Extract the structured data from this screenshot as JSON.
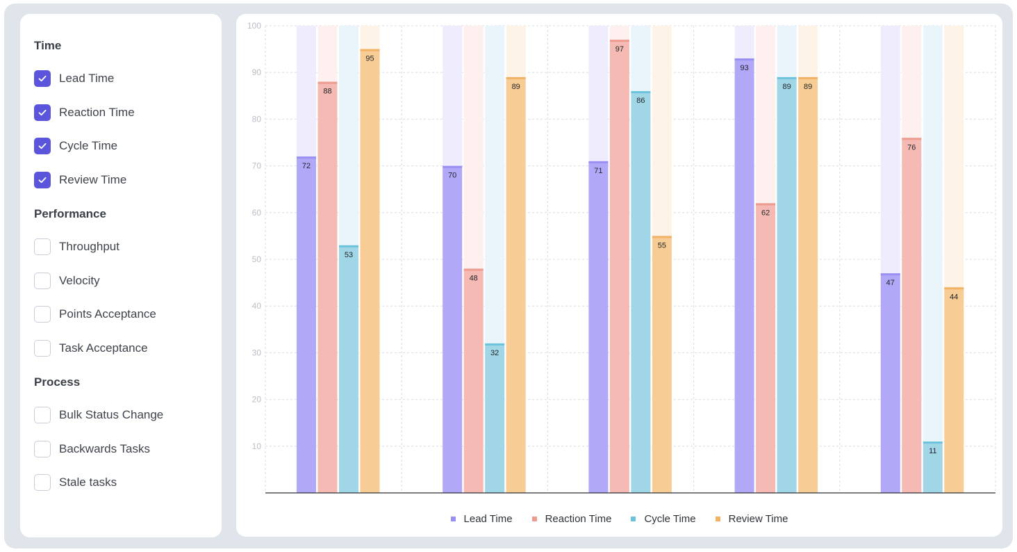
{
  "sidebar": {
    "groups": [
      {
        "title": "Time",
        "options": [
          {
            "label": "Lead Time",
            "checked": true
          },
          {
            "label": "Reaction Time",
            "checked": true
          },
          {
            "label": "Cycle Time",
            "checked": true
          },
          {
            "label": "Review Time",
            "checked": true
          }
        ]
      },
      {
        "title": "Performance",
        "options": [
          {
            "label": "Throughput",
            "checked": false
          },
          {
            "label": "Velocity",
            "checked": false
          },
          {
            "label": "Points Acceptance",
            "checked": false
          },
          {
            "label": "Task Acceptance",
            "checked": false
          }
        ]
      },
      {
        "title": "Process",
        "options": [
          {
            "label": "Bulk Status Change",
            "checked": false
          },
          {
            "label": "Backwards Tasks",
            "checked": false
          },
          {
            "label": "Stale tasks",
            "checked": false
          }
        ]
      }
    ]
  },
  "chart_data": {
    "type": "bar",
    "title": "",
    "xlabel": "",
    "ylabel": "",
    "ylim": [
      0,
      100
    ],
    "yticks": [
      10,
      20,
      30,
      40,
      50,
      60,
      70,
      80,
      90,
      100
    ],
    "grid": true,
    "legend": "bottom-center",
    "groups": 5,
    "series": [
      {
        "name": "Lead Time",
        "color": "#b1a8f7",
        "values": [
          72,
          70,
          71,
          93,
          47
        ]
      },
      {
        "name": "Reaction Time",
        "color": "#f4bab3",
        "values": [
          88,
          48,
          97,
          62,
          76
        ]
      },
      {
        "name": "Cycle Time",
        "color": "#a1d6e7",
        "values": [
          53,
          32,
          86,
          89,
          11
        ]
      },
      {
        "name": "Review Time",
        "color": "#f7cc95",
        "values": [
          95,
          89,
          55,
          89,
          44
        ]
      }
    ]
  },
  "colors": {
    "checkbox_checked": "#5b55dc",
    "series_accents": [
      "#9a8ff3",
      "#ee9c92",
      "#6ec3dc",
      "#f2b266"
    ],
    "series_bg": [
      "#efedfd",
      "#fdf0ee",
      "#eaf5fb",
      "#fef3e7"
    ]
  }
}
